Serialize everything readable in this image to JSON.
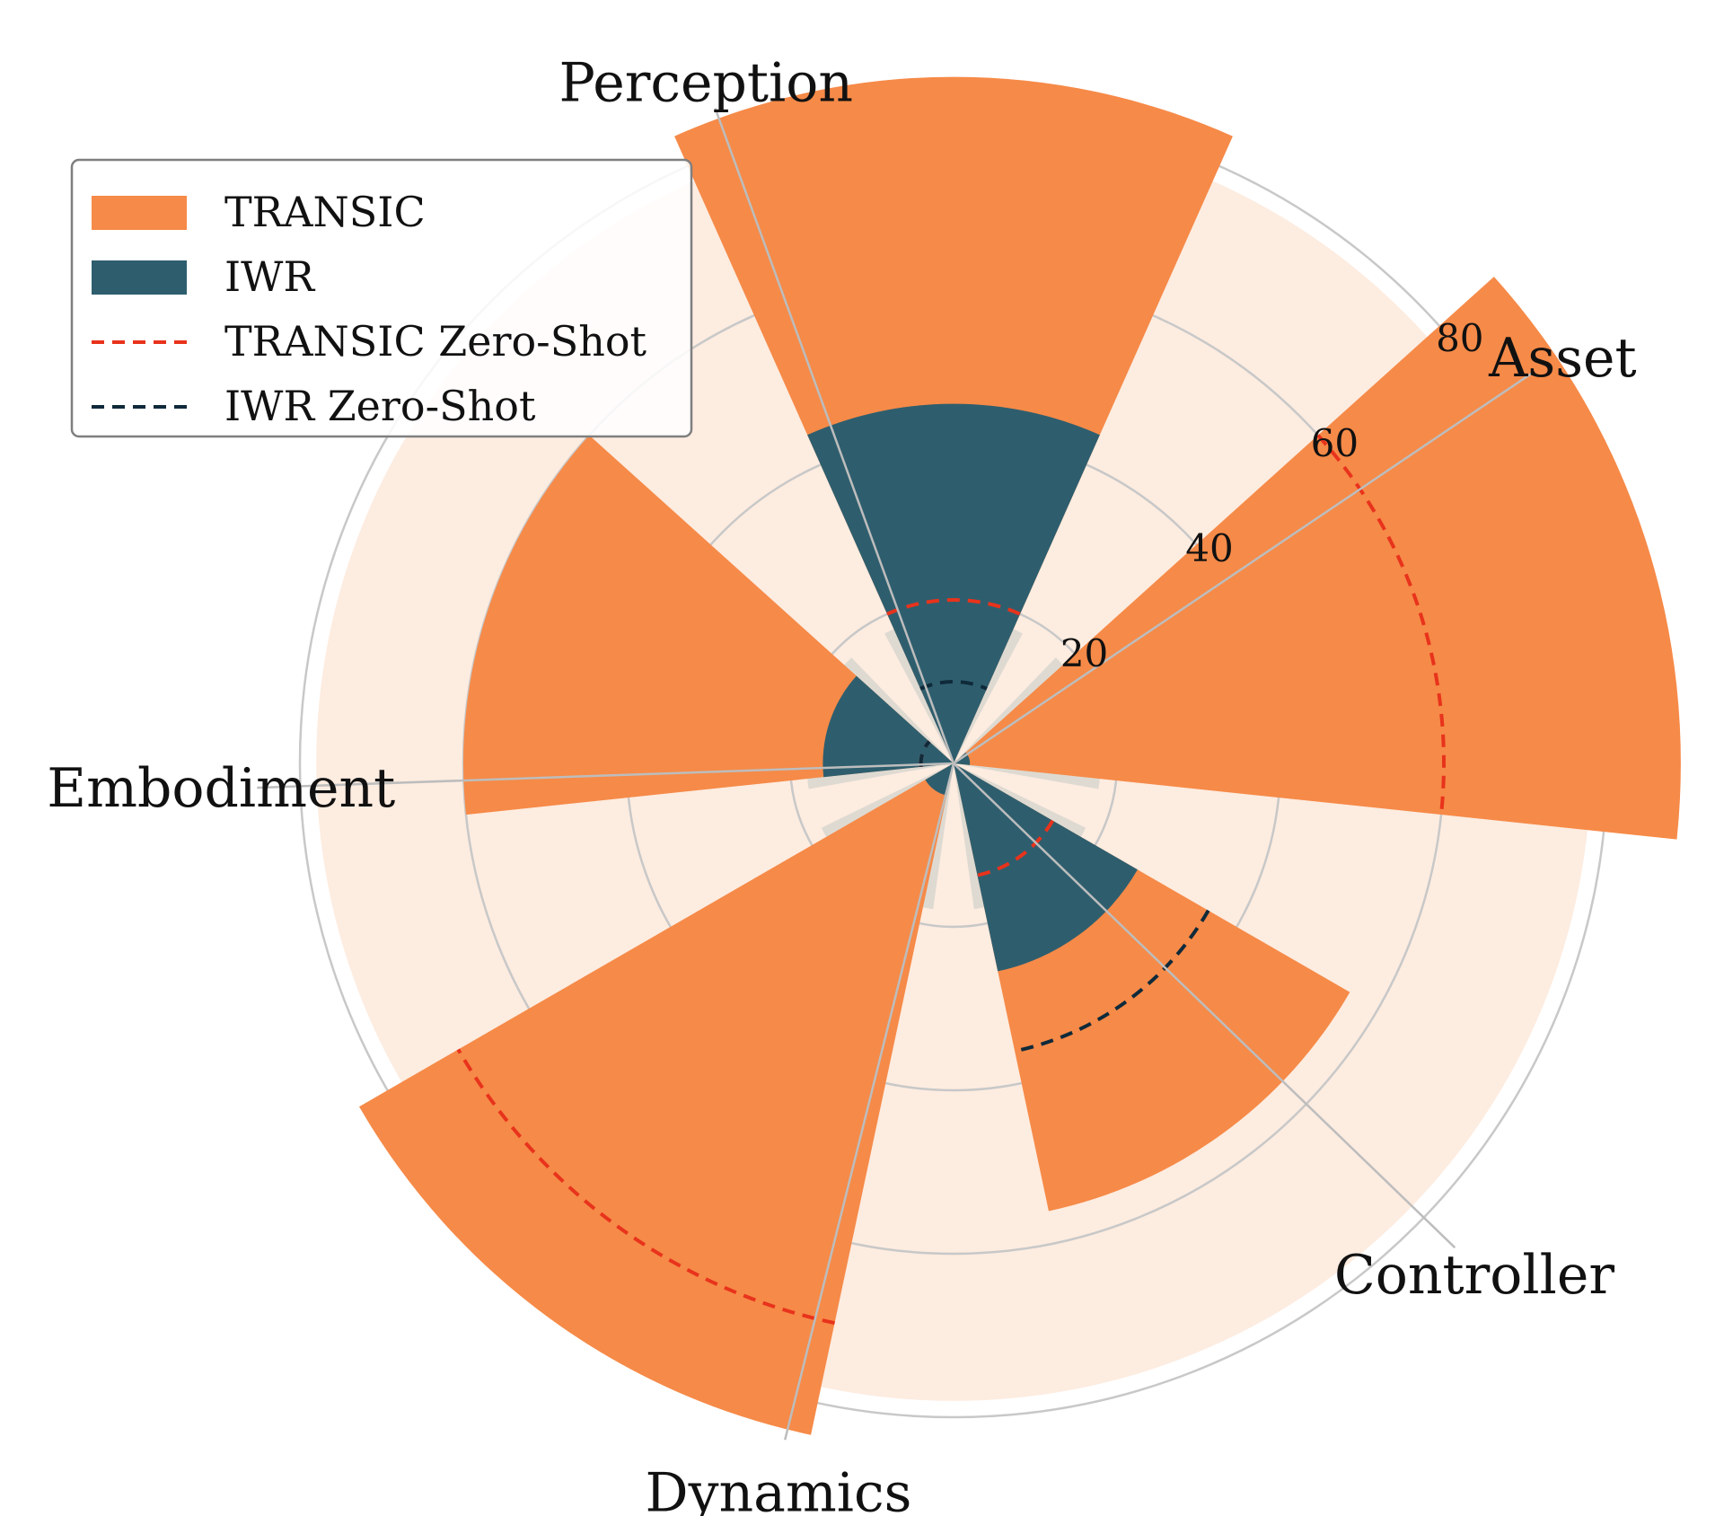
{
  "chart_data": {
    "type": "polar-bar",
    "axes": [
      "Perception",
      "Asset",
      "Controller",
      "Dynamics",
      "Embodiment"
    ],
    "rticks": [
      20,
      40,
      60,
      80
    ],
    "rlim": [
      0,
      80
    ],
    "series": [
      {
        "name": "TRANSIC",
        "color": "#F68A48",
        "values": [
          84,
          89,
          56,
          84,
          60
        ]
      },
      {
        "name": "IWR",
        "color": "#2E5E6E",
        "values": [
          44,
          2,
          26,
          4,
          16
        ]
      },
      {
        "name": "TRANSIC Zero-Shot",
        "color": "#E8331C",
        "values": [
          20,
          60,
          14,
          70,
          4
        ]
      },
      {
        "name": "IWR Zero-Shot",
        "color": "#0F2A3A",
        "values": [
          10,
          0,
          36,
          0,
          4
        ]
      }
    ],
    "legend_position": "top-left",
    "grid": true
  }
}
